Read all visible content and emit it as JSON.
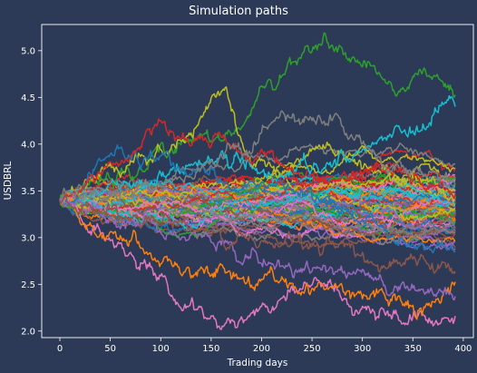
{
  "chart_data": {
    "type": "line",
    "title": "Simulation paths",
    "xlabel": "Trading days",
    "ylabel": "USDBRL",
    "xlim": [
      -18,
      410
    ],
    "ylim": [
      1.93,
      5.28
    ],
    "xticks": [
      0,
      50,
      100,
      150,
      200,
      250,
      300,
      350,
      400
    ],
    "yticks": [
      2.0,
      2.5,
      3.0,
      3.5,
      4.0,
      4.5,
      5.0
    ],
    "grid": false,
    "legend": "none",
    "n_steps": 392,
    "start_value": 3.4,
    "colors": [
      "#1f77b4",
      "#ff7f0e",
      "#2ca02c",
      "#d62728",
      "#9467bd",
      "#8c564b",
      "#e377c2",
      "#7f7f7f",
      "#bcbd22",
      "#17becf"
    ],
    "series": [
      {
        "color": "#2ca02c",
        "anchors": [
          [
            0,
            3.4
          ],
          [
            60,
            3.7
          ],
          [
            120,
            4.0
          ],
          [
            170,
            4.1
          ],
          [
            210,
            4.6
          ],
          [
            230,
            4.9
          ],
          [
            260,
            5.1
          ],
          [
            300,
            4.85
          ],
          [
            340,
            4.6
          ],
          [
            370,
            4.75
          ],
          [
            392,
            4.55
          ]
        ]
      },
      {
        "color": "#bcbd22",
        "anchors": [
          [
            0,
            3.4
          ],
          [
            80,
            3.8
          ],
          [
            120,
            4.0
          ],
          [
            160,
            4.6
          ],
          [
            185,
            3.9
          ],
          [
            220,
            3.7
          ],
          [
            260,
            3.9
          ],
          [
            300,
            3.8
          ],
          [
            350,
            3.6
          ],
          [
            392,
            3.5
          ]
        ]
      },
      {
        "color": "#e377c2",
        "anchors": [
          [
            0,
            3.4
          ],
          [
            40,
            3.05
          ],
          [
            90,
            2.75
          ],
          [
            120,
            2.3
          ],
          [
            160,
            2.08
          ],
          [
            200,
            2.25
          ],
          [
            250,
            2.55
          ],
          [
            300,
            2.25
          ],
          [
            350,
            2.15
          ],
          [
            392,
            2.12
          ]
        ]
      },
      {
        "color": "#17becf",
        "anchors": [
          [
            0,
            3.4
          ],
          [
            80,
            3.6
          ],
          [
            150,
            3.8
          ],
          [
            220,
            3.7
          ],
          [
            300,
            3.9
          ],
          [
            350,
            4.1
          ],
          [
            392,
            4.42
          ]
        ]
      },
      {
        "color": "#ff7f0e",
        "anchors": [
          [
            0,
            3.4
          ],
          [
            60,
            3.0
          ],
          [
            100,
            2.75
          ],
          [
            160,
            2.6
          ],
          [
            200,
            2.5
          ],
          [
            260,
            2.45
          ],
          [
            310,
            2.4
          ],
          [
            360,
            2.25
          ],
          [
            392,
            2.5
          ]
        ]
      },
      {
        "color": "#1f77b4",
        "anchors": [
          [
            0,
            3.4
          ],
          [
            60,
            3.95
          ],
          [
            110,
            3.8
          ],
          [
            170,
            3.6
          ],
          [
            240,
            3.5
          ],
          [
            300,
            3.2
          ],
          [
            350,
            2.9
          ],
          [
            392,
            2.85
          ]
        ]
      },
      {
        "color": "#d62728",
        "anchors": [
          [
            0,
            3.4
          ],
          [
            60,
            3.8
          ],
          [
            100,
            4.2
          ],
          [
            140,
            4.1
          ],
          [
            200,
            3.9
          ],
          [
            260,
            3.6
          ],
          [
            320,
            3.7
          ],
          [
            392,
            3.5
          ]
        ]
      },
      {
        "color": "#7f7f7f",
        "anchors": [
          [
            0,
            3.4
          ],
          [
            100,
            3.5
          ],
          [
            170,
            3.9
          ],
          [
            230,
            4.3
          ],
          [
            280,
            4.2
          ],
          [
            330,
            3.8
          ],
          [
            392,
            3.6
          ]
        ]
      },
      {
        "color": "#9467bd",
        "anchors": [
          [
            0,
            3.4
          ],
          [
            80,
            3.1
          ],
          [
            150,
            2.95
          ],
          [
            220,
            2.7
          ],
          [
            290,
            2.6
          ],
          [
            350,
            2.4
          ],
          [
            392,
            2.3
          ]
        ]
      },
      {
        "color": "#8c564b",
        "anchors": [
          [
            0,
            3.4
          ],
          [
            90,
            3.2
          ],
          [
            170,
            3.0
          ],
          [
            250,
            2.95
          ],
          [
            320,
            2.75
          ],
          [
            392,
            2.7
          ]
        ]
      }
    ]
  }
}
